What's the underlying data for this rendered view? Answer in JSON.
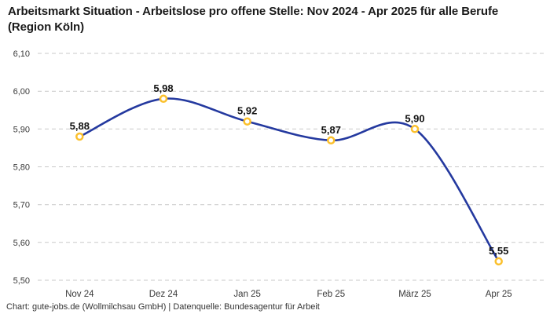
{
  "header": {
    "title": "Arbeitsmarkt Situation - Arbeitslose pro offene Stelle: Nov 2024 - Apr 2025 für alle Berufe (Region Köln)"
  },
  "footer": {
    "credit": "Chart: gute-jobs.de (Wollmilchsau GmbH) | Datenquelle: Bundesagentur für Arbeit"
  },
  "chart_data": {
    "type": "line",
    "title": "Arbeitsmarkt Situation - Arbeitslose pro offene Stelle: Nov 2024 - Apr 2025 für alle Berufe (Region Köln)",
    "categories": [
      "Nov 24",
      "Dez 24",
      "Jan 25",
      "Feb 25",
      "März 25",
      "Apr 25"
    ],
    "values": [
      5.88,
      5.98,
      5.92,
      5.87,
      5.9,
      5.55
    ],
    "point_labels": [
      "5,88",
      "5,98",
      "5,92",
      "5,87",
      "5,90",
      "5,55"
    ],
    "y_ticks": {
      "values": [
        5.5,
        5.6,
        5.7,
        5.8,
        5.9,
        6.0,
        6.1
      ],
      "labels": [
        "5,50",
        "5,60",
        "5,70",
        "5,80",
        "5,90",
        "6,00",
        "6,10"
      ]
    },
    "xlabel": "",
    "ylabel": "",
    "ylim": [
      5.5,
      6.1
    ],
    "grid": "horizontal-dashed",
    "legend": "none",
    "line_style": "smooth",
    "colors": {
      "line": "#24399f",
      "marker_ring": "#fbc02d",
      "marker_fill": "#ffffff",
      "grid": "#c9c9c9",
      "tick_text": "#3a3a3a",
      "label_text": "#111111"
    }
  }
}
